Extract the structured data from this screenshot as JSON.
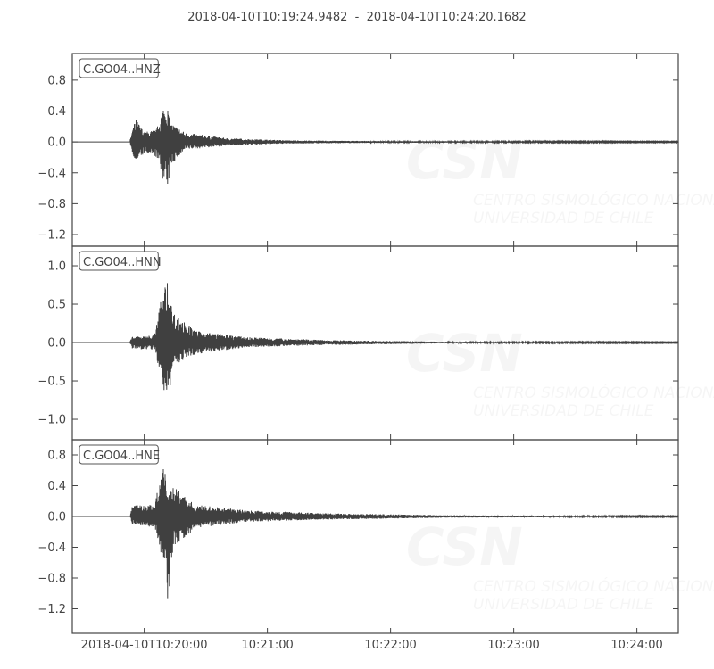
{
  "chart_data": {
    "type": "line",
    "title": "2018-04-10T10:19:24.9482  -  2018-04-10T10:24:20.1682",
    "start_time": "10:19:24.9482",
    "end_time": "10:24:20.1682",
    "x_ticks": [
      {
        "time": "10:20:00",
        "label": "2018-04-10T10:20:00"
      },
      {
        "time": "10:21:00",
        "label": "10:21:00"
      },
      {
        "time": "10:22:00",
        "label": "10:22:00"
      },
      {
        "time": "10:23:00",
        "label": "10:23:00"
      },
      {
        "time": "10:24:00",
        "label": "10:24:00"
      }
    ],
    "grid": false,
    "line_color": "#404040",
    "watermark": {
      "logo": "CSN",
      "lines": [
        "CENTRO SISMOLÓGICO NACIONAL",
        "UNIVERSIDAD DE CHILE"
      ]
    },
    "panels": [
      {
        "label": "C.GO04..HNZ",
        "ylim": [
          -1.35,
          1.145
        ],
        "y_ticks": [
          0.8,
          0.4,
          0.0,
          -0.4,
          -0.8,
          -1.2
        ],
        "y_tick_labels": [
          "0.8",
          "0.4",
          "0.0",
          "−0.4",
          "−0.8",
          "−1.2"
        ],
        "envelope": [
          [
            "10:19:53",
            0.005,
            -0.005
          ],
          [
            "10:19:54",
            0.15,
            -0.15
          ],
          [
            "10:19:56",
            0.3,
            -0.25
          ],
          [
            "10:20:00",
            0.13,
            -0.15
          ],
          [
            "10:20:06",
            0.16,
            -0.2
          ],
          [
            "10:20:09",
            0.45,
            -0.5
          ],
          [
            "10:20:11",
            0.5,
            -0.65
          ],
          [
            "10:20:13",
            0.25,
            -0.3
          ],
          [
            "10:20:20",
            0.12,
            -0.1
          ],
          [
            "10:20:40",
            0.05,
            -0.05
          ],
          [
            "10:21:10",
            0.02,
            -0.02
          ],
          [
            "10:22:00",
            0.01,
            -0.01
          ],
          [
            "10:24:20",
            0.005,
            -0.005
          ]
        ]
      },
      {
        "label": "C.GO04..HNN",
        "ylim": [
          -1.267,
          1.256
        ],
        "y_ticks": [
          1.0,
          0.5,
          0.0,
          -0.5,
          -1.0
        ],
        "y_tick_labels": [
          "1.0",
          "0.5",
          "0.0",
          "−0.5",
          "−1.0"
        ],
        "envelope": [
          [
            "10:19:53",
            0.005,
            -0.005
          ],
          [
            "10:19:54",
            0.08,
            -0.08
          ],
          [
            "10:20:05",
            0.1,
            -0.1
          ],
          [
            "10:20:08",
            0.55,
            -0.45
          ],
          [
            "10:20:11",
            0.83,
            -0.87
          ],
          [
            "10:20:14",
            0.4,
            -0.3
          ],
          [
            "10:20:25",
            0.15,
            -0.15
          ],
          [
            "10:20:50",
            0.07,
            -0.06
          ],
          [
            "10:21:30",
            0.03,
            -0.03
          ],
          [
            "10:22:30",
            0.01,
            -0.01
          ],
          [
            "10:24:20",
            0.005,
            -0.005
          ]
        ]
      },
      {
        "label": "C.GO04..HNE",
        "ylim": [
          -1.519,
          0.997
        ],
        "y_ticks": [
          0.8,
          0.4,
          0.0,
          -0.4,
          -0.8,
          -1.2
        ],
        "y_tick_labels": [
          "0.8",
          "0.4",
          "0.0",
          "−0.4",
          "−0.8",
          "−1.2"
        ],
        "envelope": [
          [
            "10:19:53",
            0.005,
            -0.005
          ],
          [
            "10:19:54",
            0.15,
            -0.1
          ],
          [
            "10:20:05",
            0.15,
            -0.15
          ],
          [
            "10:20:08",
            0.55,
            -0.55
          ],
          [
            "10:20:10",
            0.65,
            -0.65
          ],
          [
            "10:20:11",
            0.3,
            -1.3
          ],
          [
            "10:20:14",
            0.4,
            -0.4
          ],
          [
            "10:20:25",
            0.15,
            -0.15
          ],
          [
            "10:20:50",
            0.08,
            -0.07
          ],
          [
            "10:21:30",
            0.04,
            -0.04
          ],
          [
            "10:22:30",
            0.015,
            -0.015
          ],
          [
            "10:24:20",
            0.005,
            -0.005
          ]
        ]
      }
    ]
  }
}
